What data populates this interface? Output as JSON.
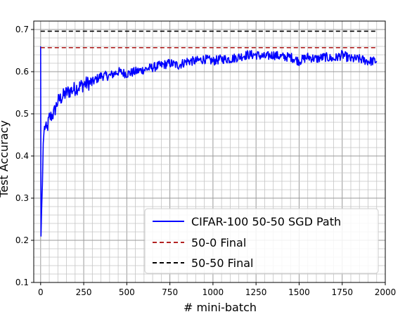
{
  "chart_data": {
    "type": "line",
    "title": "",
    "xlabel": "# mini-batch",
    "ylabel": "Test Accuracy",
    "xlim": [
      -40,
      2000
    ],
    "ylim": [
      0.1,
      0.72
    ],
    "xticks": [
      0,
      250,
      500,
      750,
      1000,
      1250,
      1500,
      1750,
      2000
    ],
    "yticks": [
      0.1,
      0.2,
      0.3,
      0.4,
      0.5,
      0.6,
      0.7
    ],
    "grid": true,
    "minor_grid": true,
    "legend_position": "bottom-right",
    "series": [
      {
        "name": "CIFAR-100 50-50 SGD Path",
        "color": "#0000ff",
        "style": "solid",
        "anchors": {
          "x": [
            0,
            2,
            5,
            10,
            15,
            20,
            25,
            35,
            50,
            75,
            100,
            150,
            200,
            250,
            300,
            350,
            400,
            450,
            500,
            550,
            600,
            650,
            700,
            750,
            800,
            850,
            900,
            950,
            1000,
            1050,
            1100,
            1150,
            1200,
            1250,
            1300,
            1350,
            1400,
            1450,
            1500,
            1550,
            1600,
            1650,
            1700,
            1750,
            1800,
            1850,
            1900,
            1950
          ],
          "y": [
            0.66,
            0.21,
            0.26,
            0.33,
            0.43,
            0.46,
            0.47,
            0.46,
            0.49,
            0.5,
            0.53,
            0.55,
            0.56,
            0.57,
            0.575,
            0.59,
            0.59,
            0.6,
            0.595,
            0.6,
            0.605,
            0.61,
            0.615,
            0.62,
            0.615,
            0.625,
            0.625,
            0.63,
            0.625,
            0.63,
            0.63,
            0.635,
            0.64,
            0.64,
            0.635,
            0.64,
            0.635,
            0.635,
            0.625,
            0.635,
            0.63,
            0.635,
            0.63,
            0.64,
            0.63,
            0.63,
            0.625,
            0.625
          ]
        }
      },
      {
        "name": "50-0 Final",
        "color": "#b22222",
        "style": "dashed",
        "x": [
          0,
          1950
        ],
        "y": [
          0.657,
          0.657
        ]
      },
      {
        "name": "50-50 Final",
        "color": "#000000",
        "style": "dashed",
        "x": [
          0,
          1950
        ],
        "y": [
          0.696,
          0.696
        ]
      }
    ]
  }
}
